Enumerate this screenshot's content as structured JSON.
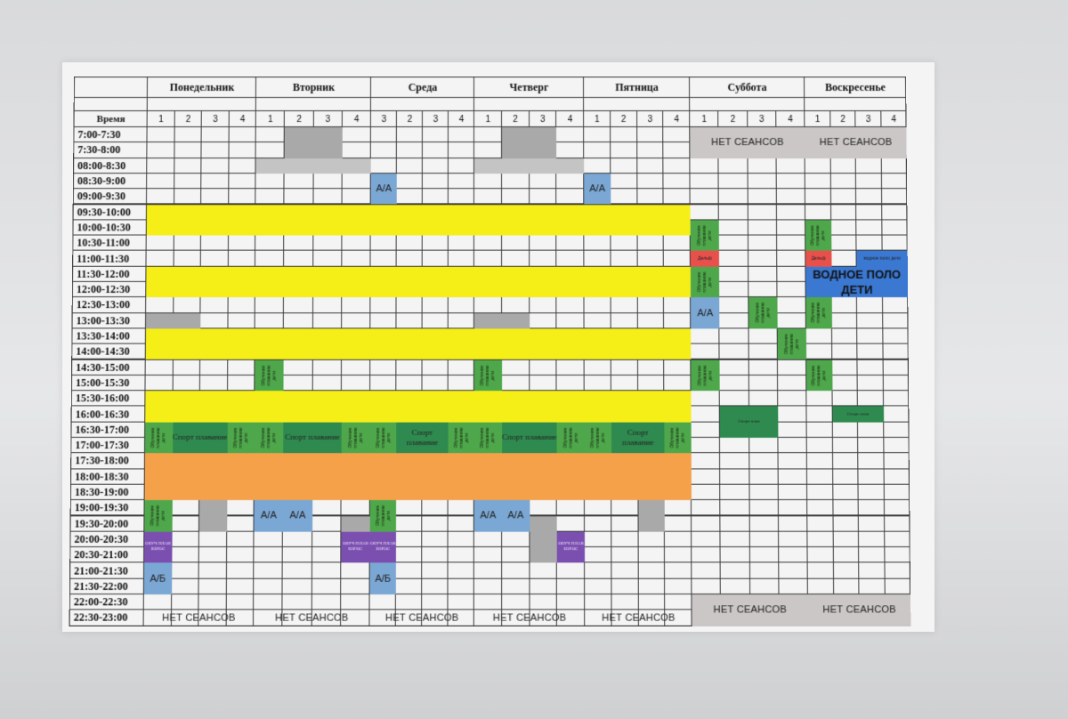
{
  "days": [
    "Понедельник",
    "Вторник",
    "Среда",
    "Четверг",
    "Пятница",
    "Суббота",
    "Воскресенье"
  ],
  "time_header": "Время",
  "lanes": [
    [
      "1",
      "2",
      "3",
      "4"
    ],
    [
      "1",
      "2",
      "3",
      "4"
    ],
    [
      "3",
      "2",
      "3",
      "4"
    ],
    [
      "1",
      "2",
      "3",
      "4"
    ],
    [
      "1",
      "2",
      "3",
      "4"
    ],
    [
      "1",
      "2",
      "3",
      "4"
    ],
    [
      "1",
      "2",
      "3",
      "4"
    ]
  ],
  "times": [
    "7:00-7:30",
    "7:30-8:00",
    "08:00-8:30",
    "08:30-9:00",
    "09:00-9:30",
    "09:30-10:00",
    "10:00-10:30",
    "10:30-11:00",
    "11:00-11:30",
    "11:30-12:00",
    "12:00-12:30",
    "12:30-13:00",
    "13:00-13:30",
    "13:30-14:00",
    "14:00-14:30",
    "14:30-15:00",
    "15:00-15:30",
    "15:30-16:00",
    "16:00-16:30",
    "16:30-17:00",
    "17:00-17:30",
    "17:30-18:00",
    "18:00-18:30",
    "18:30-19:00",
    "19:00-19:30",
    "19:30-20:00",
    "20:00-20:30",
    "20:30-21:00",
    "21:00-21:30",
    "21:30-22:00",
    "22:00-22:30",
    "22:30-23:00"
  ],
  "labels": {
    "no_sessions": "НЕТ СЕАНСОВ",
    "aa": "А/А",
    "ab": "А/Б",
    "sport_swimming": "Спорт плавание",
    "training_kids": "Обучение плаванию дети",
    "training_adults": "ОБУЧ ПЛАВ ВЗРОС",
    "water_polo_kids": "ВОДНОЕ ПОЛО ДЕТИ",
    "water_polo_kids_small": "водное поло дети",
    "dolphin": "Дельф",
    "sport_swim_small": "Спорт плав"
  },
  "colors": {
    "yellow": "#f5ee17",
    "orange": "#f4a14a",
    "gray": "#a9a9a9",
    "light_blue": "#7ba7d4",
    "dark_blue": "#3a78d2",
    "green": "#4ea84b",
    "dark_green": "#2f8a4f",
    "purple": "#7b4fb0",
    "red": "#e8504c"
  }
}
